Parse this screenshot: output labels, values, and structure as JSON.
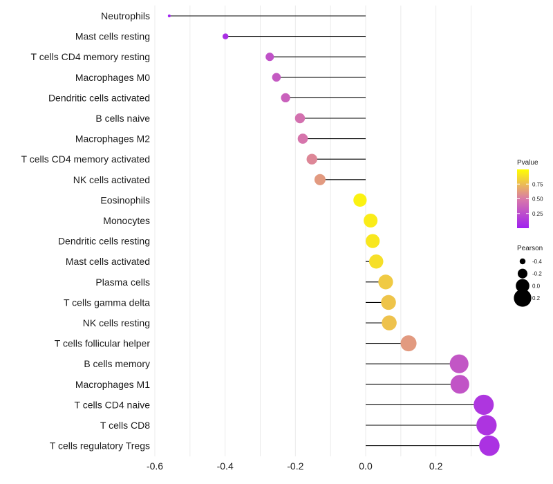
{
  "chart_data": {
    "type": "lollipop",
    "title": "",
    "xlabel": "",
    "ylabel": "",
    "xlim": [
      -0.6,
      0.36
    ],
    "x_ticks": [
      -0.6,
      -0.4,
      -0.2,
      0.0,
      0.2
    ],
    "x_tick_labels": [
      "-0.6",
      "-0.4",
      "-0.2",
      "0.0",
      "0.2"
    ],
    "grid": true,
    "categories": [
      "Neutrophils",
      "Mast cells resting",
      "T cells CD4 memory resting",
      "Macrophages M0",
      "Dendritic cells activated",
      "B cells naive",
      "Macrophages M2",
      "T cells CD4 memory activated",
      "NK cells activated",
      "Eosinophils",
      "Monocytes",
      "Dendritic cells resting",
      "Mast cells activated",
      "Plasma cells",
      "T cells gamma delta",
      "NK cells resting",
      "T cells follicular helper",
      "B cells memory",
      "Macrophages M1",
      "T cells CD4 naive",
      "T cells CD8",
      "T cells regulatory  Tregs"
    ],
    "series": [
      {
        "name": "Pearson",
        "values": [
          -0.559,
          -0.399,
          -0.273,
          -0.254,
          -0.228,
          -0.187,
          -0.179,
          -0.153,
          -0.13,
          -0.016,
          0.014,
          0.02,
          0.03,
          0.057,
          0.065,
          0.067,
          0.122,
          0.266,
          0.268,
          0.336,
          0.344,
          0.352
        ]
      },
      {
        "name": "Pvalue",
        "values": [
          0.0,
          0.08,
          0.28,
          0.32,
          0.36,
          0.45,
          0.47,
          0.55,
          0.62,
          0.95,
          0.93,
          0.91,
          0.88,
          0.8,
          0.78,
          0.77,
          0.62,
          0.3,
          0.29,
          0.12,
          0.11,
          0.1
        ]
      }
    ],
    "legend": {
      "placement": "right",
      "color": {
        "title": "Pvalue",
        "ticks": [
          "0.75",
          "0.50",
          "0.25"
        ],
        "tick_values": [
          0.75,
          0.5,
          0.25
        ],
        "range": [
          0.0,
          1.0
        ],
        "low_color": "#a020f0",
        "mid_color": "#d97aa8",
        "high_color": "#ffff00"
      },
      "size": {
        "title": "Pearson",
        "ticks": [
          "-0.4",
          "-0.2",
          "0.0",
          "0.2"
        ],
        "tick_values": [
          -0.4,
          -0.2,
          0.0,
          0.2
        ]
      }
    }
  }
}
